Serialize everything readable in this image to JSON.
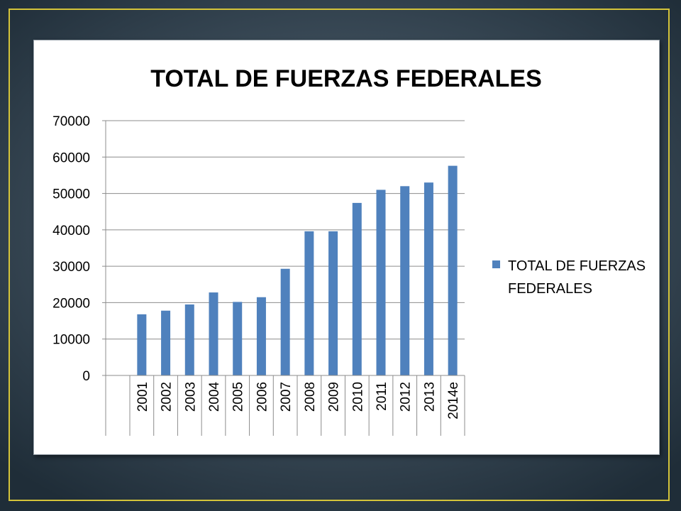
{
  "chart_data": {
    "type": "bar",
    "title": "TOTAL DE FUERZAS FEDERALES",
    "xlabel": "",
    "ylabel": "",
    "ylim": [
      0,
      70000
    ],
    "yticks": [
      "0",
      "10000",
      "20000",
      "30000",
      "40000",
      "50000",
      "60000",
      "70000"
    ],
    "categories": [
      "2001",
      "2002",
      "2003",
      "2004",
      "2005",
      "2006",
      "2007",
      "2008",
      "2009",
      "2010",
      "2011",
      "2012",
      "2013",
      "2014e"
    ],
    "series": [
      {
        "name": "TOTAL DE FUERZAS FEDERALES",
        "color": "#4f81bd",
        "values": [
          16800,
          17800,
          19500,
          22800,
          20200,
          21500,
          29300,
          39600,
          39600,
          47400,
          51000,
          52000,
          53000,
          57600
        ]
      }
    ],
    "legend_position": "right",
    "grid": true
  }
}
